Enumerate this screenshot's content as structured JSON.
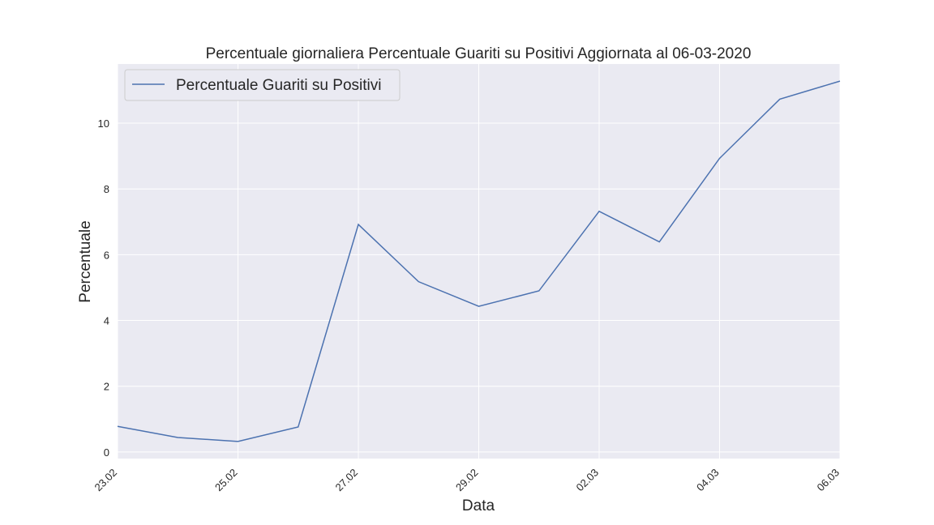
{
  "chart_data": {
    "type": "line",
    "title": "Percentuale giornaliera Percentuale Guariti su Positivi Aggiornata al 06-03-2020",
    "xlabel": "Data",
    "ylabel": "Percentuale",
    "x": [
      "23.02",
      "24.02",
      "25.02",
      "26.02",
      "27.02",
      "28.02",
      "29.02",
      "01.03",
      "02.03",
      "03.03",
      "04.03",
      "05.03",
      "06.03"
    ],
    "x_tick_labels": [
      "23.02",
      "25.02",
      "27.02",
      "29.02",
      "02.03",
      "04.03",
      "06.03"
    ],
    "y_ticks": [
      0,
      2,
      4,
      6,
      8,
      10
    ],
    "ylim": [
      -0.2,
      11.8
    ],
    "series": [
      {
        "name": "Percentuale Guariti su Positivi",
        "values": [
          0.78,
          0.44,
          0.32,
          0.76,
          6.92,
          5.18,
          4.43,
          4.9,
          7.32,
          6.39,
          8.93,
          10.73,
          11.28
        ]
      }
    ],
    "legend": {
      "placement": "top-left",
      "entries": [
        "Percentuale Guariti su Positivi"
      ]
    },
    "grid": true,
    "colors": {
      "background": "#eaeaf2",
      "grid": "#ffffff",
      "line": "#4c72b0",
      "text": "#262626"
    }
  }
}
